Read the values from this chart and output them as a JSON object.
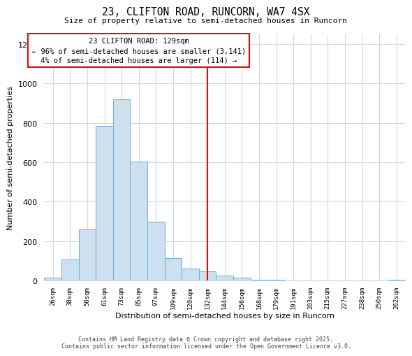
{
  "title1": "23, CLIFTON ROAD, RUNCORN, WA7 4SX",
  "title2": "Size of property relative to semi-detached houses in Runcorn",
  "xlabel": "Distribution of semi-detached houses by size in Runcorn",
  "ylabel": "Number of semi-detached properties",
  "bar_labels": [
    "26sqm",
    "38sqm",
    "50sqm",
    "61sqm",
    "73sqm",
    "85sqm",
    "97sqm",
    "109sqm",
    "120sqm",
    "132sqm",
    "144sqm",
    "156sqm",
    "168sqm",
    "179sqm",
    "191sqm",
    "203sqm",
    "215sqm",
    "227sqm",
    "238sqm",
    "250sqm",
    "262sqm"
  ],
  "bar_values": [
    15,
    105,
    260,
    785,
    920,
    605,
    300,
    115,
    60,
    45,
    25,
    15,
    5,
    2,
    1,
    0,
    0,
    0,
    0,
    0,
    2
  ],
  "bar_color": "#cce0f0",
  "bar_edge_color": "#6aaed6",
  "vline_x_idx": 9,
  "vline_color": "red",
  "annotation_title": "23 CLIFTON ROAD: 129sqm",
  "annotation_line1": "← 96% of semi-detached houses are smaller (3,141)",
  "annotation_line2": "4% of semi-detached houses are larger (114) →",
  "ylim": [
    0,
    1250
  ],
  "yticks": [
    0,
    200,
    400,
    600,
    800,
    1000,
    1200
  ],
  "footnote1": "Contains HM Land Registry data © Crown copyright and database right 2025.",
  "footnote2": "Contains public sector information licensed under the Open Government Licence v3.0.",
  "bg_color": "#ffffff",
  "grid_color": "#d0d8e8"
}
